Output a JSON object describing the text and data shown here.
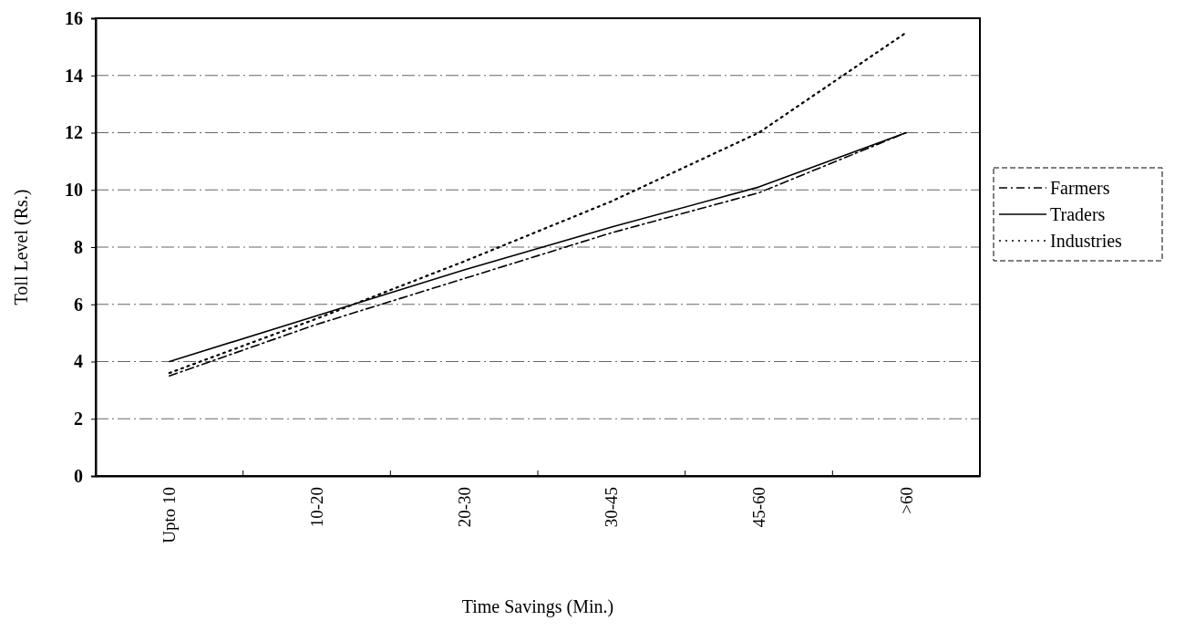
{
  "chart_data": {
    "type": "line",
    "xlabel": "Time Savings (Min.)",
    "ylabel": "Toll Level (Rs.)",
    "categories": [
      "Upto 10",
      "10-20",
      "20-30",
      "30-45",
      "45-60",
      ">60"
    ],
    "ylim": [
      0,
      16
    ],
    "yticks": [
      0,
      2,
      4,
      6,
      8,
      10,
      12,
      14,
      16
    ],
    "grid": "y",
    "legend": "right",
    "marker": "none",
    "series": [
      {
        "name": "Farmers",
        "color": "#000000",
        "line_style": "dashdot",
        "values": [
          3.5,
          5.3,
          6.9,
          8.5,
          9.9,
          12.0
        ]
      },
      {
        "name": "Traders",
        "color": "#000000",
        "line_style": "solid",
        "values": [
          4.0,
          5.6,
          7.2,
          8.7,
          10.1,
          12.0
        ]
      },
      {
        "name": "Industries",
        "color": "#000000",
        "line_style": "dotted",
        "values": [
          3.6,
          5.5,
          7.5,
          9.6,
          12.0,
          15.5
        ]
      }
    ]
  }
}
